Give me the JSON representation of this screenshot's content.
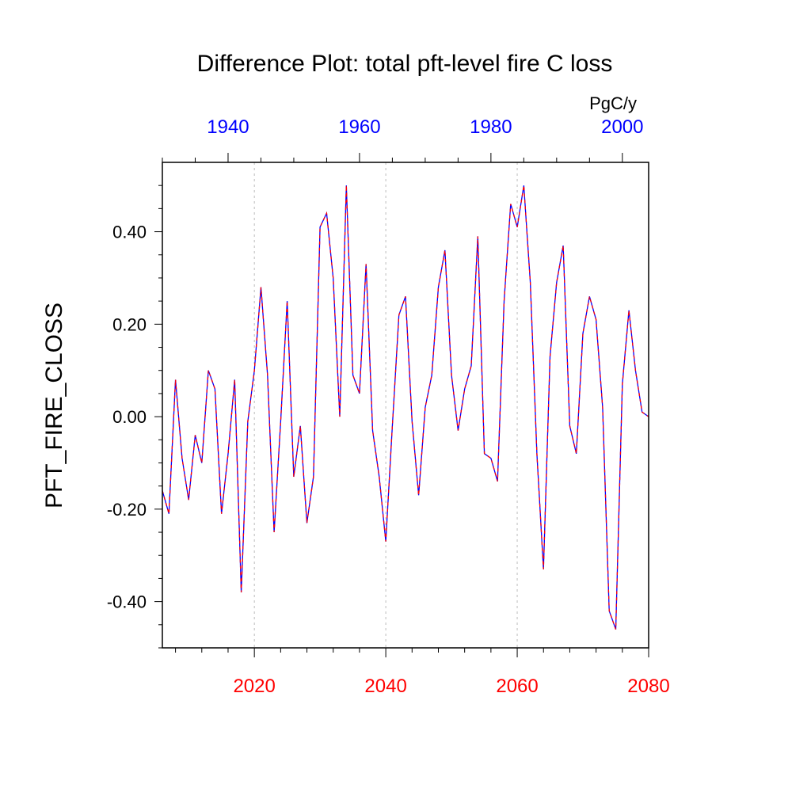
{
  "chart_data": {
    "type": "line",
    "title": "Difference Plot: total pft-level fire C loss",
    "units": "PgC/y",
    "ylabel": "PFT_FIRE_CLOSS",
    "ylim": [
      -0.5,
      0.55
    ],
    "y_ticks": [
      -0.4,
      -0.2,
      0.0,
      0.2,
      0.4
    ],
    "y_tick_labels": [
      "-0.40",
      "-0.20",
      "0.00",
      "0.20",
      "0.40"
    ],
    "x_bottom": {
      "range": [
        2006,
        2080
      ],
      "ticks": [
        2020,
        2040,
        2060,
        2080
      ],
      "tick_labels": [
        "2020",
        "2040",
        "2060",
        "2080"
      ],
      "color": "#ff0000"
    },
    "x_top": {
      "range": [
        1930,
        2004
      ],
      "ticks": [
        1940,
        1960,
        1980,
        2000
      ],
      "tick_labels": [
        "1940",
        "1960",
        "1980",
        "2000"
      ],
      "color": "#0000ff"
    },
    "vertical_grid_at": [
      2020,
      2040,
      2060
    ],
    "line_colors": [
      "#0000ff",
      "#ff0000"
    ],
    "x": [
      2006,
      2007,
      2008,
      2009,
      2010,
      2011,
      2012,
      2013,
      2014,
      2015,
      2016,
      2017,
      2018,
      2019,
      2020,
      2021,
      2022,
      2023,
      2024,
      2025,
      2026,
      2027,
      2028,
      2029,
      2030,
      2031,
      2032,
      2033,
      2034,
      2035,
      2036,
      2037,
      2038,
      2039,
      2040,
      2041,
      2042,
      2043,
      2044,
      2045,
      2046,
      2047,
      2048,
      2049,
      2050,
      2051,
      2052,
      2053,
      2054,
      2055,
      2056,
      2057,
      2058,
      2059,
      2060,
      2061,
      2062,
      2063,
      2064,
      2065,
      2066,
      2067,
      2068,
      2069,
      2070,
      2071,
      2072,
      2073,
      2074,
      2075,
      2076,
      2077,
      2078,
      2079,
      2080
    ],
    "values": [
      -0.16,
      -0.21,
      0.08,
      -0.09,
      -0.18,
      -0.04,
      -0.1,
      0.1,
      0.06,
      -0.21,
      -0.08,
      0.08,
      -0.38,
      -0.01,
      0.1,
      0.28,
      0.09,
      -0.25,
      -0.01,
      0.25,
      -0.13,
      -0.02,
      -0.23,
      -0.13,
      0.41,
      0.44,
      0.3,
      0.0,
      0.5,
      0.09,
      0.05,
      0.33,
      -0.03,
      -0.13,
      -0.27,
      -0.02,
      0.22,
      0.26,
      -0.01,
      -0.17,
      0.02,
      0.09,
      0.28,
      0.36,
      0.09,
      -0.03,
      0.06,
      0.11,
      0.39,
      -0.08,
      -0.09,
      -0.14,
      0.25,
      0.46,
      0.41,
      0.5,
      0.29,
      -0.08,
      -0.33,
      0.13,
      0.29,
      0.37,
      -0.02,
      -0.08,
      0.18,
      0.26,
      0.21,
      0.02,
      -0.42,
      -0.46,
      0.07,
      0.23,
      0.1,
      0.01,
      0.0
    ]
  }
}
